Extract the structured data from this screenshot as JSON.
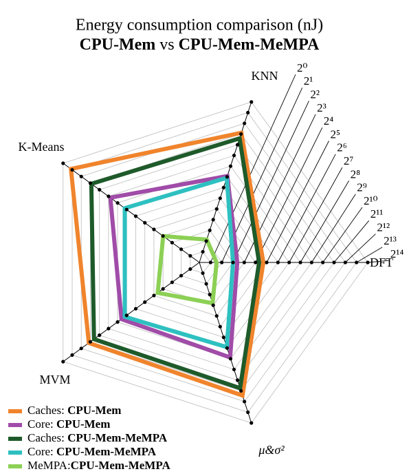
{
  "chart_data": {
    "type": "radar",
    "title": "Energy consumption comparison (nJ)",
    "subtitle": [
      "CPU-Mem",
      "vs",
      "CPU-Mem-MeMPA"
    ],
    "categories": [
      "DFT",
      "KNN",
      "K-Means",
      "MVM",
      "μ&σ²"
    ],
    "log_scale": true,
    "rlim": [
      0.5,
      16384
    ],
    "rticks": [
      {
        "value": 1,
        "label": "2⁰"
      },
      {
        "value": 2,
        "label": "2¹"
      },
      {
        "value": 4,
        "label": "2²"
      },
      {
        "value": 8,
        "label": "2³"
      },
      {
        "value": 16,
        "label": "2⁴"
      },
      {
        "value": 32,
        "label": "2⁵"
      },
      {
        "value": 64,
        "label": "2⁶"
      },
      {
        "value": 128,
        "label": "2⁷"
      },
      {
        "value": 256,
        "label": "2⁸"
      },
      {
        "value": 512,
        "label": "2⁹"
      },
      {
        "value": 1024,
        "label": "2¹⁰"
      },
      {
        "value": 2048,
        "label": "2¹¹"
      },
      {
        "value": 4096,
        "label": "2¹²"
      },
      {
        "value": 8192,
        "label": "2¹³"
      },
      {
        "value": 16384,
        "label": "2¹⁴"
      }
    ],
    "grid": true,
    "legend": "lower left",
    "series": [
      {
        "name": "Caches: CPU-Mem",
        "color": "#f0842c",
        "values": [
          26,
          2230,
          9000,
          2300,
          2760
        ]
      },
      {
        "name": "Core: CPU-Mem",
        "color": "#a04ca8",
        "values": [
          5.2,
          135,
          445,
          190,
          235
        ]
      },
      {
        "name": "Caches: CPU-Mem-MeMPA",
        "color": "#1e5a2a",
        "values": [
          20,
          1550,
          1900,
          1550,
          1720
        ]
      },
      {
        "name": "Core: CPU-Mem-MeMPA",
        "color": "#2ec0c0",
        "values": [
          4,
          120,
          148,
          148,
          120
        ]
      },
      {
        "name": "MeMPA:CPU-Mem-MeMPA",
        "color": "#8cd055",
        "values": [
          1.45,
          2.2,
          7.9,
          12,
          7
        ]
      }
    ]
  }
}
